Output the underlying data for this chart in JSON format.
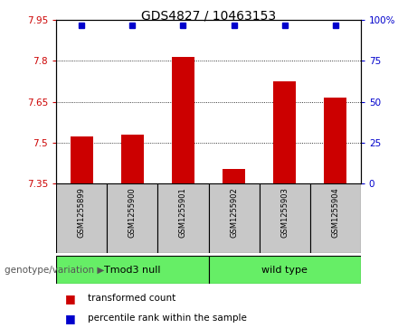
{
  "title": "GDS4827 / 10463153",
  "samples": [
    "GSM1255899",
    "GSM1255900",
    "GSM1255901",
    "GSM1255902",
    "GSM1255903",
    "GSM1255904"
  ],
  "bar_values": [
    7.524,
    7.531,
    7.815,
    7.405,
    7.725,
    7.664
  ],
  "percentile_values": [
    100,
    100,
    100,
    100,
    100,
    100
  ],
  "ylim_left": [
    7.35,
    7.95
  ],
  "ylim_right": [
    0,
    100
  ],
  "yticks_left": [
    7.35,
    7.5,
    7.65,
    7.8,
    7.95
  ],
  "yticks_right": [
    0,
    25,
    50,
    75,
    100
  ],
  "ytick_labels_left": [
    "7.35",
    "7.5",
    "7.65",
    "7.8",
    "7.95"
  ],
  "ytick_labels_right": [
    "0",
    "25",
    "50",
    "75",
    "100%"
  ],
  "bar_color": "#cc0000",
  "dot_color": "#0000cc",
  "groups": [
    {
      "label": "Tmod3 null",
      "indices": [
        0,
        1,
        2
      ],
      "color": "#66ee66"
    },
    {
      "label": "wild type",
      "indices": [
        3,
        4,
        5
      ],
      "color": "#66ee66"
    }
  ],
  "genotype_label": "genotype/variation",
  "legend_items": [
    {
      "label": "transformed count",
      "color": "#cc0000"
    },
    {
      "label": "percentile rank within the sample",
      "color": "#0000cc"
    }
  ],
  "sample_box_color": "#c8c8c8",
  "figwidth": 4.61,
  "figheight": 3.63,
  "dpi": 100
}
